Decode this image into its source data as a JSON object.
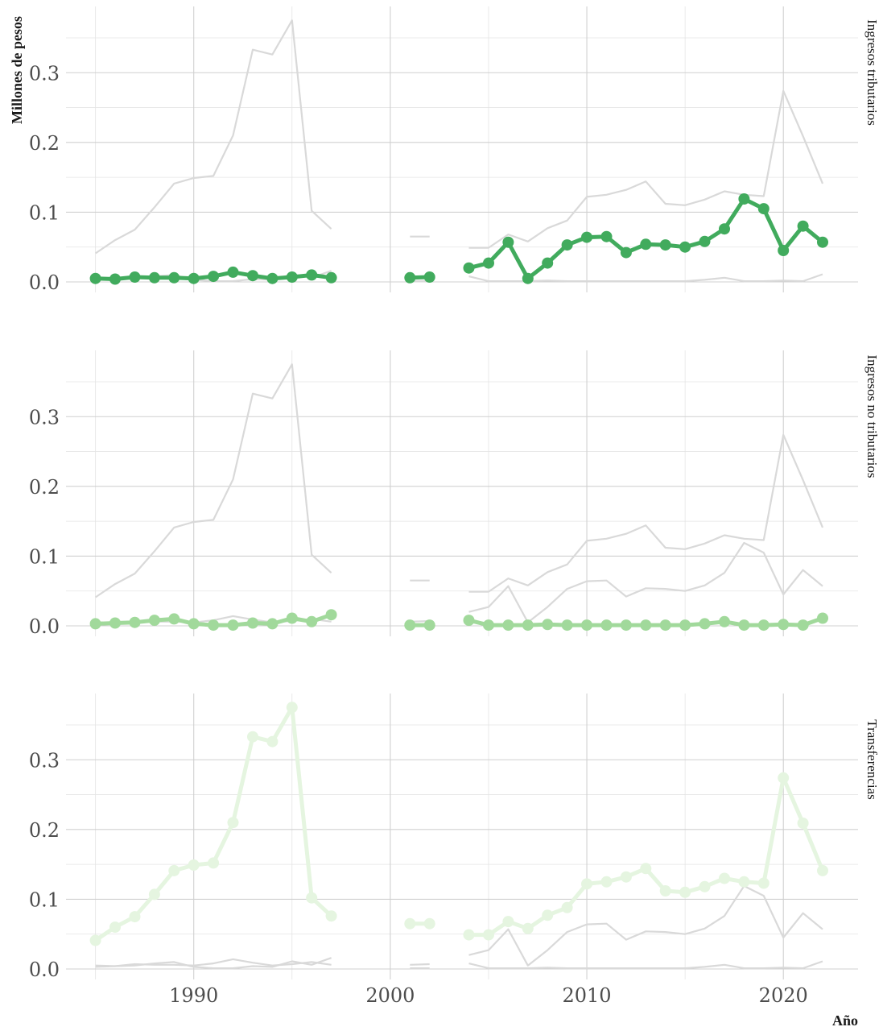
{
  "chart_data": {
    "type": "line",
    "ylabel": "Millones de pesos",
    "xlabel": "Año",
    "xlim": [
      1983.5,
      2023.8
    ],
    "ylim": [
      -0.015,
      0.395
    ],
    "x_ticks": [
      1990,
      2000,
      2010,
      2020
    ],
    "y_ticks": [
      0.0,
      0.1,
      0.2,
      0.3
    ],
    "y_tick_labels": [
      "0.0",
      "0.1",
      "0.2",
      "0.3"
    ],
    "x": [
      1985,
      1986,
      1987,
      1988,
      1989,
      1990,
      1991,
      1992,
      1993,
      1994,
      1995,
      1996,
      1997,
      1998,
      1999,
      2000,
      2001,
      2002,
      2003,
      2004,
      2005,
      2006,
      2007,
      2008,
      2009,
      2010,
      2011,
      2012,
      2013,
      2014,
      2015,
      2016,
      2017,
      2018,
      2019,
      2020,
      2021,
      2022
    ],
    "series": [
      {
        "name": "Ingresos tributarios",
        "color": "#41ab5d",
        "values": [
          0.005,
          0.004,
          0.007,
          0.006,
          0.006,
          0.005,
          0.008,
          0.014,
          0.009,
          0.005,
          0.007,
          0.01,
          0.006,
          null,
          null,
          null,
          0.006,
          0.007,
          null,
          0.02,
          0.027,
          0.057,
          0.005,
          0.027,
          0.053,
          0.064,
          0.065,
          0.042,
          0.054,
          0.053,
          0.05,
          0.058,
          0.076,
          0.119,
          0.105,
          0.045,
          0.08,
          0.057
        ]
      },
      {
        "name": "Ingresos no tributarios",
        "color": "#a1d99b",
        "values": [
          0.003,
          0.004,
          0.005,
          0.008,
          0.01,
          0.003,
          0.001,
          0.001,
          0.004,
          0.003,
          0.011,
          0.006,
          0.016,
          null,
          null,
          null,
          0.001,
          0.001,
          null,
          0.008,
          0.001,
          0.001,
          0.001,
          0.002,
          0.001,
          0.001,
          0.001,
          0.001,
          0.001,
          0.001,
          0.001,
          0.003,
          0.006,
          0.001,
          0.001,
          0.002,
          0.001,
          0.011
        ]
      },
      {
        "name": "Transferencias",
        "color": "#e5f5e0",
        "values": [
          0.041,
          0.06,
          0.075,
          0.107,
          0.141,
          0.149,
          0.152,
          0.21,
          0.333,
          0.326,
          0.375,
          0.102,
          0.076,
          null,
          null,
          null,
          0.065,
          0.065,
          null,
          0.049,
          0.049,
          0.068,
          0.058,
          0.077,
          0.088,
          0.122,
          0.125,
          0.132,
          0.144,
          0.112,
          0.11,
          0.118,
          0.13,
          0.125,
          0.123,
          0.274,
          0.209,
          0.141
        ]
      }
    ]
  }
}
